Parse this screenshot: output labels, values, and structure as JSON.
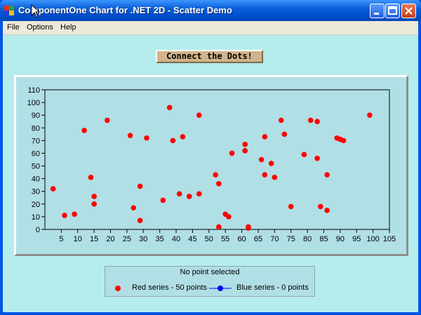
{
  "window": {
    "title": "ComponentOne Chart for .NET 2D - Scatter Demo"
  },
  "menu": {
    "items": [
      "File",
      "Options",
      "Help"
    ]
  },
  "chart_title": "Connect the Dots!",
  "status": {
    "text": "No point selected"
  },
  "legend": {
    "red_label": "Red series - 50 points",
    "blue_label": "Blue series - 0 points"
  },
  "colors": {
    "red_series": "#ff0000",
    "blue_series": "#0000ff",
    "plot_background": "#b0dfe5"
  },
  "chart_data": {
    "type": "scatter",
    "xlim": [
      0,
      105
    ],
    "ylim": [
      0,
      110
    ],
    "xticks": [
      5,
      10,
      15,
      20,
      25,
      30,
      35,
      40,
      45,
      50,
      55,
      60,
      65,
      70,
      75,
      80,
      85,
      90,
      95,
      100,
      105
    ],
    "yticks": [
      0,
      10,
      20,
      30,
      40,
      50,
      60,
      70,
      80,
      90,
      100,
      110
    ],
    "grid": false,
    "series": [
      {
        "name": "Red series",
        "color": "#ff0000",
        "points": [
          [
            2.5,
            32
          ],
          [
            6,
            11
          ],
          [
            9,
            12
          ],
          [
            12,
            78
          ],
          [
            14,
            41
          ],
          [
            15,
            26
          ],
          [
            15,
            20
          ],
          [
            19,
            86
          ],
          [
            26,
            74
          ],
          [
            27,
            17
          ],
          [
            29,
            34
          ],
          [
            29,
            7
          ],
          [
            31,
            72
          ],
          [
            36,
            23
          ],
          [
            38,
            96
          ],
          [
            39,
            70
          ],
          [
            41,
            28
          ],
          [
            42,
            73
          ],
          [
            47,
            90
          ],
          [
            47,
            28
          ],
          [
            52,
            43
          ],
          [
            53,
            36
          ],
          [
            53,
            2
          ],
          [
            55,
            12
          ],
          [
            56,
            10
          ],
          [
            57,
            60
          ],
          [
            61,
            67
          ],
          [
            61,
            62
          ],
          [
            62,
            2
          ],
          [
            62,
            1
          ],
          [
            66,
            55
          ],
          [
            67,
            73
          ],
          [
            67,
            43
          ],
          [
            69,
            52
          ],
          [
            70,
            41
          ],
          [
            72,
            86
          ],
          [
            73,
            75
          ],
          [
            75,
            18
          ],
          [
            79,
            59
          ],
          [
            81,
            86
          ],
          [
            83,
            85
          ],
          [
            83,
            56
          ],
          [
            84,
            18
          ],
          [
            86,
            43
          ],
          [
            86,
            15
          ],
          [
            89,
            72
          ],
          [
            90,
            71
          ],
          [
            91,
            70
          ],
          [
            99,
            90
          ],
          [
            44,
            26
          ]
        ]
      },
      {
        "name": "Blue series",
        "color": "#0000ff",
        "points": []
      }
    ]
  }
}
